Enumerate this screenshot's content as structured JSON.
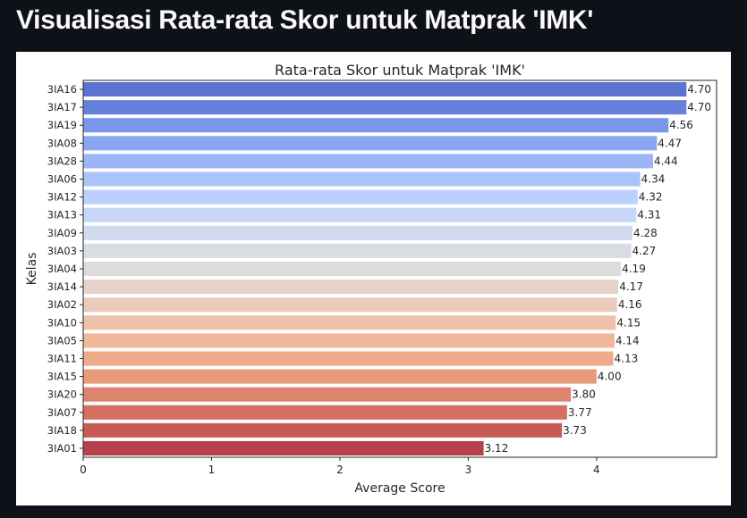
{
  "page": {
    "title": "Visualisasi Rata-rata Skor untuk Matprak 'IMK'"
  },
  "chart_data": {
    "type": "bar",
    "orientation": "horizontal",
    "title": "Rata-rata Skor untuk Matprak 'IMK'",
    "xlabel": "Average Score",
    "ylabel": "Kelas",
    "xlim": [
      0,
      4.935
    ],
    "xticks": [
      0,
      1,
      2,
      3,
      4
    ],
    "grid": false,
    "categories": [
      "3IA16",
      "3IA17",
      "3IA19",
      "3IA08",
      "3IA28",
      "3IA06",
      "3IA12",
      "3IA13",
      "3IA09",
      "3IA03",
      "3IA04",
      "3IA14",
      "3IA02",
      "3IA10",
      "3IA05",
      "3IA11",
      "3IA15",
      "3IA20",
      "3IA07",
      "3IA18",
      "3IA01"
    ],
    "values": [
      4.7,
      4.7,
      4.56,
      4.47,
      4.44,
      4.34,
      4.32,
      4.31,
      4.28,
      4.27,
      4.19,
      4.17,
      4.16,
      4.15,
      4.14,
      4.13,
      4.0,
      3.8,
      3.77,
      3.73,
      3.12
    ],
    "value_labels": [
      "4.70",
      "4.70",
      "4.56",
      "4.47",
      "4.44",
      "4.34",
      "4.32",
      "4.31",
      "4.28",
      "4.27",
      "4.19",
      "4.17",
      "4.16",
      "4.15",
      "4.14",
      "4.13",
      "4.00",
      "3.80",
      "3.77",
      "3.73",
      "3.12"
    ],
    "colors": [
      "#5b72cf",
      "#6680dc",
      "#7a96e8",
      "#8ba6f0",
      "#9bb5f7",
      "#abc3fb",
      "#bbd0fc",
      "#c8d7f5",
      "#d1dbed",
      "#d8dde4",
      "#dedcdb",
      "#e6d3c9",
      "#ebcbbb",
      "#efc2ac",
      "#f0b79b",
      "#eeaa89",
      "#e89a79",
      "#de8570",
      "#d46f62",
      "#c85a55",
      "#b7404a"
    ],
    "colormap": "coolwarm"
  }
}
